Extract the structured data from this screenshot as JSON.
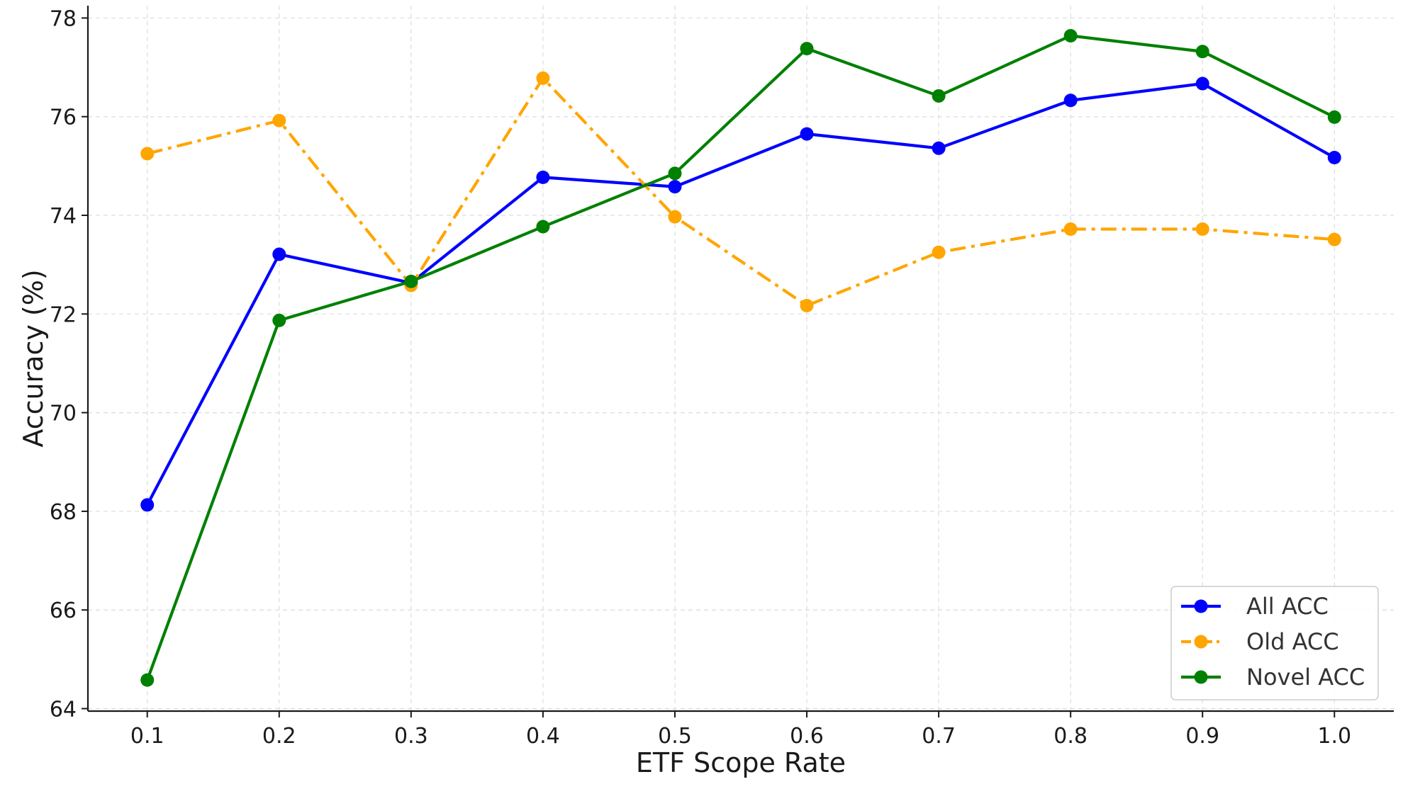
{
  "chart_data": {
    "type": "line",
    "title": "",
    "xlabel": "ETF Scope Rate",
    "ylabel": "Accuracy (%)",
    "x": [
      0.1,
      0.2,
      0.3,
      0.4,
      0.5,
      0.6,
      0.7,
      0.8,
      0.9,
      1.0
    ],
    "x_tick_labels": [
      "0.1",
      "0.2",
      "0.3",
      "0.4",
      "0.5",
      "0.6",
      "0.7",
      "0.8",
      "0.9",
      "1.0"
    ],
    "y_ticks": [
      64,
      66,
      68,
      70,
      72,
      74,
      76,
      78
    ],
    "y_tick_labels": [
      "64",
      "66",
      "68",
      "70",
      "72",
      "74",
      "76",
      "78"
    ],
    "xlim": [
      0.055,
      1.045
    ],
    "ylim": [
      63.95,
      78.25
    ],
    "grid": true,
    "legend_position": "bottom-right",
    "series": [
      {
        "name": "All ACC",
        "color": "#0000ff",
        "line_style": "solid",
        "marker": "circle",
        "values": [
          68.13,
          73.21,
          72.63,
          74.77,
          74.58,
          75.65,
          75.36,
          76.33,
          76.67,
          75.17
        ]
      },
      {
        "name": "Old ACC",
        "color": "#ffa500",
        "line_style": "dashdot",
        "marker": "circle",
        "values": [
          75.25,
          75.92,
          72.58,
          76.78,
          73.97,
          72.17,
          73.25,
          73.72,
          73.72,
          73.51
        ]
      },
      {
        "name": "Novel ACC",
        "color": "#008000",
        "line_style": "solid",
        "marker": "circle",
        "values": [
          64.58,
          71.87,
          72.66,
          73.77,
          74.85,
          77.38,
          76.42,
          77.64,
          77.32,
          75.99
        ]
      }
    ]
  }
}
